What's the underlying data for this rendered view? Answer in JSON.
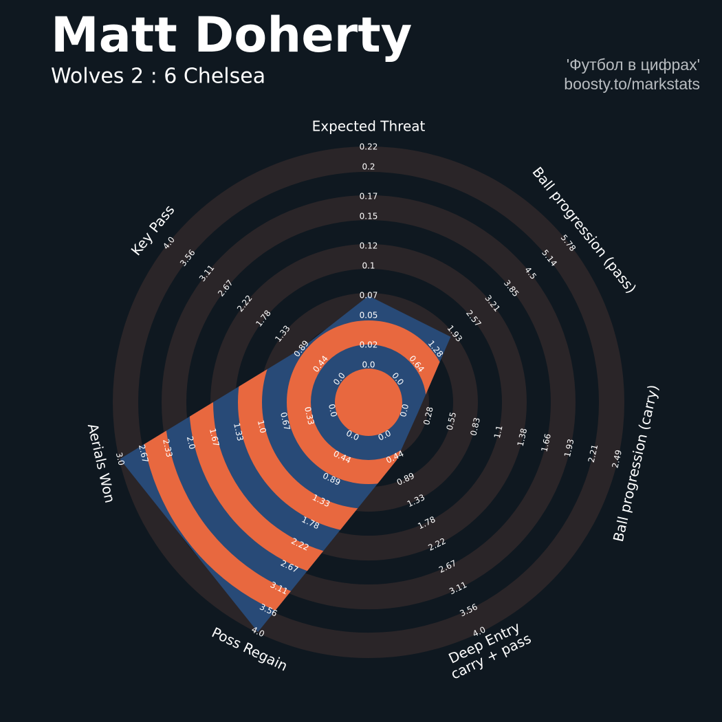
{
  "chart_data": {
    "type": "radar",
    "title": "Matt Doherty",
    "subtitle": "Wolves 2 : 6 Chelsea",
    "credits": [
      "'Футбол в цифрах'",
      "boosty.to/markstats"
    ],
    "categories": [
      "Expected Threat",
      "Ball progression (pass)",
      "Ball progression (carry)",
      [
        "Deep Entry",
        "carry + pass"
      ],
      "Poss Regain",
      "Aerials Won",
      "Key Pass"
    ],
    "values": [
      0.07,
      1.8,
      0.15,
      0.5,
      4,
      3,
      0.9
    ],
    "ticks": [
      [
        {
          "value": 0,
          "label": "0.0"
        },
        0.02,
        0.05,
        0.07,
        0.1,
        0.12,
        0.15,
        0.17,
        0.2,
        0.22
      ],
      [
        {
          "value": 0,
          "label": "0.0"
        },
        0.64,
        1.28,
        1.93,
        2.57,
        3.21,
        3.85,
        4.5,
        5.14,
        5.78
      ],
      [
        {
          "value": 0,
          "label": "0.0"
        },
        0.28,
        0.55,
        0.83,
        1.1,
        1.38,
        1.66,
        1.93,
        2.21,
        2.49
      ],
      [
        {
          "value": 0,
          "label": "0.0"
        },
        0.44,
        0.89,
        1.33,
        1.78,
        2.22,
        2.67,
        3.11,
        3.56,
        {
          "value": 4,
          "label": "4.0"
        }
      ],
      [
        {
          "value": 0,
          "label": "0.0"
        },
        0.44,
        0.89,
        1.33,
        1.78,
        2.22,
        2.67,
        3.11,
        3.56,
        {
          "value": 4,
          "label": "4.0"
        }
      ],
      [
        {
          "value": 0,
          "label": "0.0"
        },
        0.33,
        0.67,
        {
          "value": 1,
          "label": "1.0"
        },
        1.33,
        1.67,
        {
          "value": 2,
          "label": "2.0"
        },
        2.33,
        2.67,
        {
          "value": 3,
          "label": "3.0"
        }
      ],
      [
        {
          "value": 0,
          "label": "0.0"
        },
        0.44,
        0.89,
        1.33,
        1.78,
        2.22,
        2.67,
        3.11,
        3.56,
        {
          "value": 4,
          "label": "4.0"
        }
      ]
    ],
    "color": "#284a77",
    "ring_color": "#2a2528",
    "inner_ring_color": "#e8683f"
  }
}
